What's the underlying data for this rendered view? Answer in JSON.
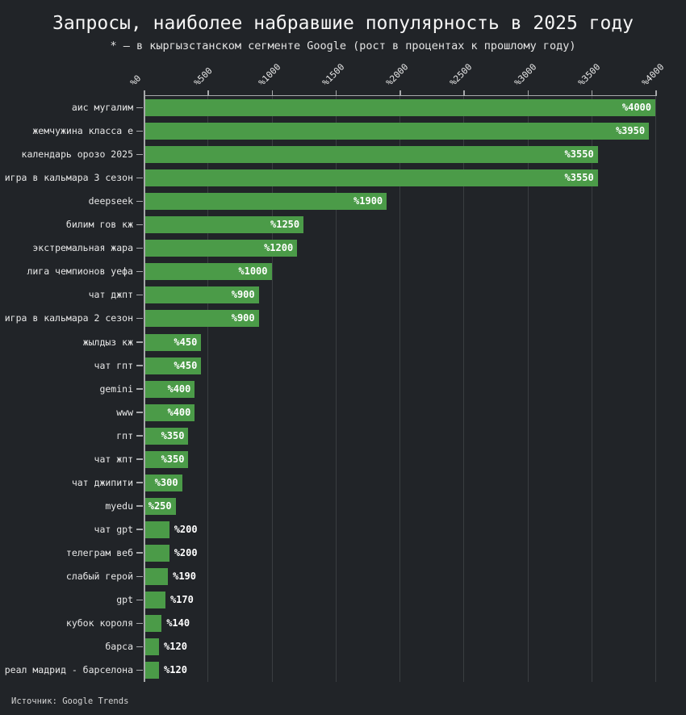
{
  "source_note": "Источник: Google Trends",
  "colors": {
    "background": "#212428",
    "bar": "#4b9b48",
    "axis": "#a7a9ab",
    "grid": "#3a3e41",
    "tick_label": "#e8e8e8",
    "value_label": "#ffffff",
    "title": "#f5f5f5"
  },
  "chart_data": {
    "type": "bar",
    "orientation": "horizontal",
    "title": "Запросы, наиболее набравшие популярность в 2025 году",
    "subtitle": "* — в кыргызстанском сегменте Google (рост в процентах к прошлому году)",
    "xlabel": "",
    "ylabel": "",
    "xlim": [
      0,
      4000
    ],
    "grid": true,
    "x_axis_position": "top",
    "x_tick_labels": [
      "%0",
      "%500",
      "%1000",
      "%1500",
      "%2000",
      "%2500",
      "%3000",
      "%3500",
      "%4000"
    ],
    "value_prefix": "%",
    "categories": [
      "аис мугалим",
      "жемчужина класса е",
      "календарь орозо 2025",
      "игра в кальмара 3 сезон",
      "deepseek",
      "билим гов кж",
      "экстремальная жара",
      "лига чемпионов уефа",
      "чат джпт",
      "игра в кальмара 2 сезон",
      "жылдыз кж",
      "чат гпт",
      "gemini",
      "www",
      "гпт",
      "чат жпт",
      "чат джипити",
      "myedu",
      "чат gpt",
      "телеграм веб",
      "слабый герой",
      "gpt",
      "кубок короля",
      "барса",
      "реал мадрид - барселона"
    ],
    "values": [
      4000,
      3950,
      3550,
      3550,
      1900,
      1250,
      1200,
      1000,
      900,
      900,
      450,
      450,
      400,
      400,
      350,
      350,
      300,
      250,
      200,
      200,
      190,
      170,
      140,
      120,
      120
    ],
    "value_labels": [
      "%4000",
      "%3950",
      "%3550",
      "%3550",
      "%1900",
      "%1250",
      "%1200",
      "%1000",
      "%900",
      "%900",
      "%450",
      "%450",
      "%400",
      "%400",
      "%350",
      "%350",
      "%300",
      "%250",
      "%200",
      "%200",
      "%190",
      "%170",
      "%140",
      "%120",
      "%120"
    ]
  }
}
